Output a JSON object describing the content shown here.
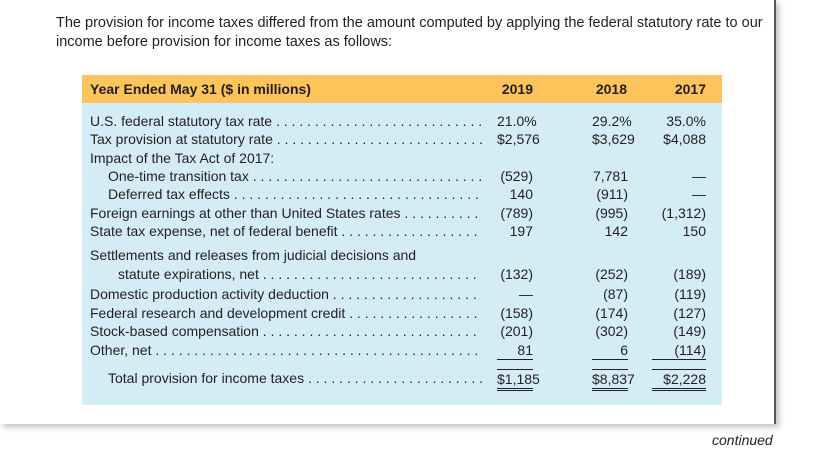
{
  "intro": "The provision for income taxes differed from the amount computed by applying the federal statutory rate to our income before provision for income taxes as follows:",
  "table": {
    "header": {
      "title": "Year Ended May 31 ($ in millions)",
      "years": [
        "2019",
        "2018",
        "2017"
      ]
    },
    "rows": [
      {
        "label": "U.S. federal statutory tax rate",
        "values": [
          "21.0%",
          "29.2%",
          "35.0%"
        ]
      },
      {
        "label": "Tax provision at statutory rate",
        "values": [
          "$2,576",
          "$3,629",
          "$4,088"
        ]
      },
      {
        "label": "Impact of the Tax Act of 2017:",
        "values": [
          "",
          "",
          ""
        ]
      },
      {
        "label": "One-time transition tax",
        "values": [
          "(529)",
          "7,781",
          "—"
        ]
      },
      {
        "label": "Deferred tax effects",
        "values": [
          "140",
          "(911)",
          "—"
        ]
      },
      {
        "label": "Foreign earnings at other than United States rates",
        "values": [
          "(789)",
          "(995)",
          "(1,312)"
        ]
      },
      {
        "label": "State tax expense, net of federal benefit",
        "values": [
          "197",
          "142",
          "150"
        ]
      },
      {
        "label": "Settlements and releases from judicial decisions and",
        "values": [
          "",
          "",
          ""
        ]
      },
      {
        "label": "statute expirations, net",
        "values": [
          "(132)",
          "(252)",
          "(189)"
        ]
      },
      {
        "label": "Domestic production activity deduction",
        "values": [
          "—",
          "(87)",
          "(119)"
        ]
      },
      {
        "label": "Federal research and development credit",
        "values": [
          "(158)",
          "(174)",
          "(127)"
        ]
      },
      {
        "label": "Stock-based compensation",
        "values": [
          "(201)",
          "(302)",
          "(149)"
        ]
      },
      {
        "label": "Other, net",
        "values": [
          "81",
          "6",
          "(114)"
        ]
      },
      {
        "label": "Total provision for income taxes",
        "values": [
          "$1,185",
          "$8,837",
          "$2,228"
        ]
      }
    ]
  },
  "footer": {
    "continued": "continued"
  },
  "colors": {
    "header_bg": "#fcc45a",
    "table_bg": "#d4ecf6"
  }
}
